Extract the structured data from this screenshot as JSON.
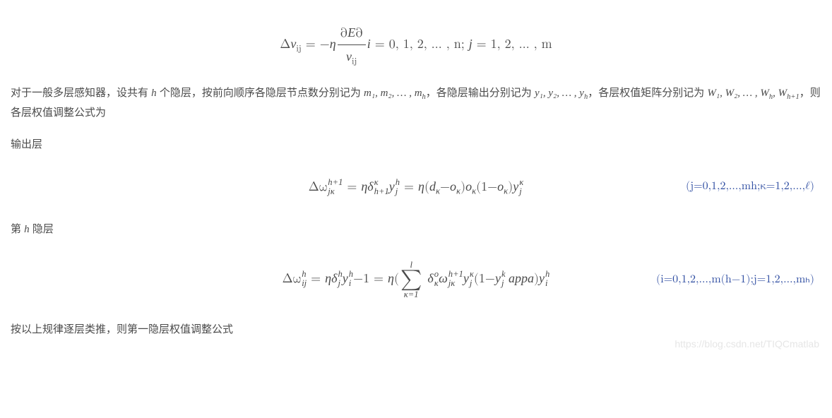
{
  "eq1": {
    "lhs_delta": "Δ",
    "lhs_var": "v",
    "lhs_sub": "ij",
    "eq": "=",
    "minus": "−",
    "eta": "η",
    "frac_num_partial1": "∂",
    "frac_num_E": "E",
    "frac_num_partial2": "∂",
    "frac_den_v": "v",
    "frac_den_sub": "ij",
    "i_var": "i",
    "i_range": " = 0, 1, 2, … , n; ",
    "j_var": "j",
    "j_range": " = 1, 2, … , m"
  },
  "p1": {
    "t1": "对于一般多层感知器，设共有 ",
    "h": "h",
    "t2": " 个隐层，按前向顺序各隐层节点数分别记为 ",
    "m_seq": "m₁, m₂, … , m",
    "m_h_sub": "h",
    "t3": "，各隐层输出分别记为 ",
    "y_seq": "y₁, y₂, … , y",
    "y_h_sub": "h",
    "t4": "，各层权值矩阵分别记为 ",
    "W_seq": "W₁, W₂, … , W",
    "W_h_sub": "h",
    "W_comma": ", W",
    "W_h1_sub": "h+1",
    "t5": "，则各层权值调整公式为"
  },
  "label_output": "输出层",
  "eq2": {
    "lhs": "Δω",
    "lhs_sub": "jκ",
    "lhs_sup": "h+1",
    "eq1": " = ",
    "eta": "η",
    "delta": "δ",
    "d_sub": "h+1",
    "d_sup": "κ",
    "y1": "y",
    "y1_sub": "j",
    "y1_sup": "h",
    "eq2": " = ",
    "eta2": "η",
    "open": "(",
    "d_var": "d",
    "d_var_sub": "κ",
    "minus": "−",
    "o1": "o",
    "o1_sub": "κ",
    "close1": ")",
    "o2": "o",
    "o2_sub": "κ",
    "open2": "(1−",
    "o3": "o",
    "o3_sub": "κ",
    "close2": ")",
    "y2": "y",
    "y2_sub": "j",
    "y2_sup": "κ",
    "tag": "(j=0,1,2,…,mh;κ=1,2,…,ℓ)"
  },
  "label_hidden_pre": "第 ",
  "label_hidden_h": "h",
  "label_hidden_post": " 隐层",
  "eq3": {
    "lhs": "Δω",
    "lhs_sub": "ij",
    "lhs_sup": "h",
    "eq1": " = ",
    "eta": "η",
    "delta": "δ",
    "d_sub": "j",
    "d_sup": "h",
    "y1": "y",
    "y1_sub": "i",
    "y1_sup": "h",
    "minus1": "−1 = ",
    "eta2": "η",
    "open": "(",
    "sum_top": "l",
    "sum_bot": "κ=1",
    "delta2": "δ",
    "d2_sub": "κ",
    "d2_sup": "o",
    "omega": "ω",
    "om_sub": "jκ",
    "om_sup": "h+1",
    "y2": "y",
    "y2_sub": "j",
    "y2_sup": "κ",
    "open2": "(1−",
    "y3": "y",
    "y3_sub": "j",
    "y3_sup": "k",
    "appa": " appa",
    "close": ")",
    "y4": "y",
    "y4_sub": "i",
    "y4_sup": "h",
    "tag": "(i=0,1,2,…,m(h−1);j=1,2,…,mₕ)"
  },
  "p_last": "按以上规律逐层类推，则第一隐层权值调整公式",
  "watermark": "https://blog.csdn.net/TIQCmatlab",
  "colors": {
    "text": "#4b4b4b",
    "tag": "#2b4aa0",
    "watermark": "#e6e6e6"
  }
}
